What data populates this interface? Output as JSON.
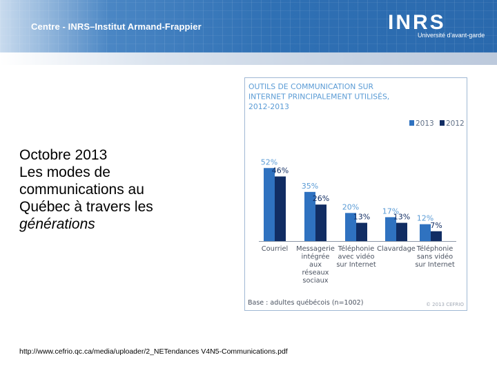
{
  "header": {
    "title": "Centre - INRS–Institut Armand-Frappier",
    "logo": "INRS",
    "logo_tagline": "Université d'avant-garde"
  },
  "slide": {
    "title_lines": [
      "Octobre 2013",
      "Les modes de",
      "communications au",
      "Québec à travers les",
      "générations"
    ]
  },
  "source_url": "http://www.cefrio.qc.ca/media/uploader/2_NETendances V4N5-Communications.pdf",
  "chart_data": {
    "type": "bar",
    "title_lines": [
      "OUTILS DE COMMUNICATION SUR",
      "INTERNET PRINCIPALEMENT UTILISÉS,",
      "2012-2013"
    ],
    "categories": [
      [
        "Courriel"
      ],
      [
        "Messagerie",
        "intégrée",
        "aux",
        "réseaux",
        "sociaux"
      ],
      [
        "Téléphonie",
        "avec vidéo",
        "sur Internet"
      ],
      [
        "Clavardage"
      ],
      [
        "Téléphonie",
        "sans vidéo",
        "sur Internet"
      ]
    ],
    "series": [
      {
        "name": "2013",
        "values": [
          52,
          35,
          20,
          17,
          12
        ],
        "labels": [
          "52%",
          "35%",
          "20%",
          "17%",
          "12%"
        ]
      },
      {
        "name": "2012",
        "values": [
          46,
          26,
          13,
          13,
          7
        ],
        "labels": [
          "46%",
          "26%",
          "13%",
          "13%",
          "7%"
        ]
      }
    ],
    "ylim": [
      0,
      60
    ],
    "footnote": "Base : adultes québécois (n=1002)",
    "copyright": "© 2013 CEFRIO",
    "colors": {
      "2013": "#2f72c0",
      "2012": "#112d63",
      "title": "#5a9bd5",
      "label_2013": "#5a9bd5",
      "label_2012": "#112d63"
    }
  }
}
